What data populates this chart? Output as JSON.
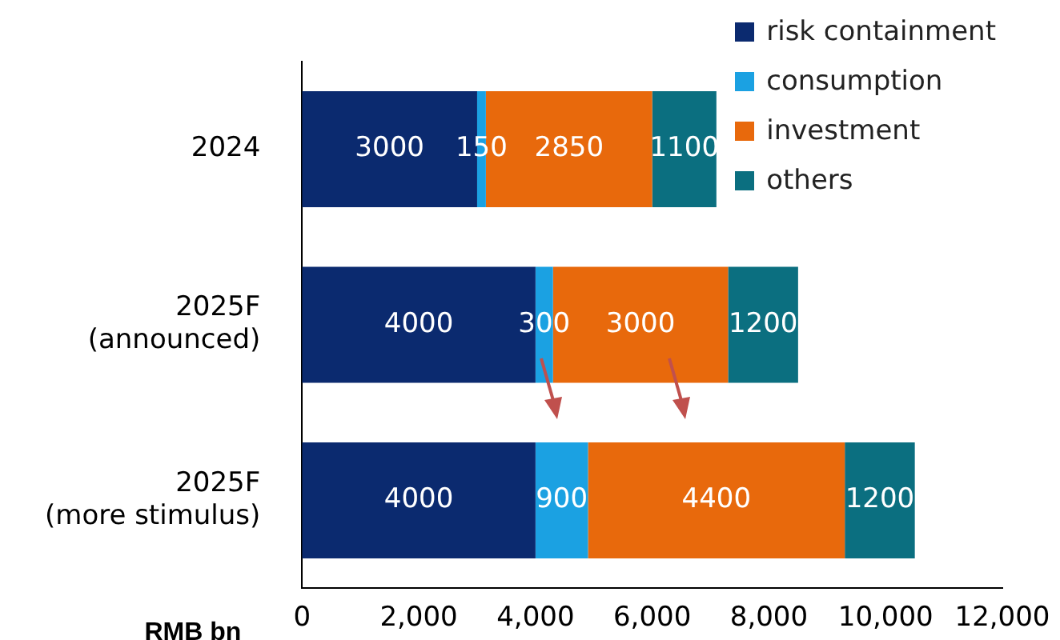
{
  "chart_data": {
    "type": "bar",
    "orientation": "horizontal",
    "stacked": true,
    "xlabel": "RMB bn",
    "categories": [
      "2024",
      "2025F\n(announced)",
      "2025F\n(more stimulus)"
    ],
    "series": [
      {
        "name": "risk containment",
        "color": "#0b2a6f",
        "values": [
          3000,
          4000,
          4000
        ]
      },
      {
        "name": "consumption",
        "color": "#1ba1e2",
        "values": [
          150,
          300,
          900
        ]
      },
      {
        "name": "investment",
        "color": "#e8690c",
        "values": [
          2850,
          3000,
          4400
        ]
      },
      {
        "name": "others",
        "color": "#0b6f80",
        "values": [
          1100,
          1200,
          1200
        ]
      }
    ],
    "data_labels": true,
    "legend": "top right",
    "grid": false,
    "xlim": [
      0,
      12000
    ],
    "xticks": [
      0,
      {
        "value": 2000,
        "label": "2,000"
      },
      {
        "value": 4000,
        "label": "4,000"
      },
      {
        "value": 6000,
        "label": "6,000"
      },
      {
        "value": 8000,
        "label": "8,000"
      },
      {
        "value": 10000,
        "label": "10,000"
      },
      {
        "value": 12000,
        "label": "12,000"
      }
    ]
  }
}
